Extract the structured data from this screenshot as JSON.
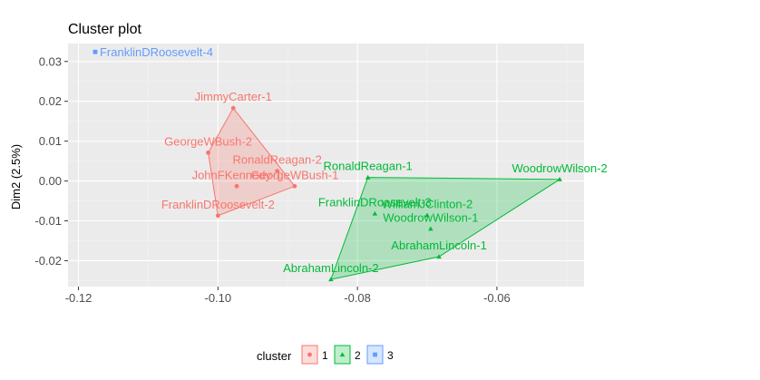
{
  "chart_data": {
    "type": "scatter",
    "title": "Cluster plot",
    "xlabel": "",
    "ylabel": "Dim2 (2.5%)",
    "xlim": [
      -0.1215,
      -0.0475
    ],
    "ylim": [
      -0.0265,
      0.0345
    ],
    "x_ticks": [
      -0.12,
      -0.1,
      -0.08,
      -0.06
    ],
    "x_tick_labels": [
      "-0.12",
      "-0.10",
      "-0.08",
      "-0.06"
    ],
    "y_ticks": [
      -0.02,
      -0.01,
      0.0,
      0.01,
      0.02,
      0.03
    ],
    "y_tick_labels": [
      "-0.02",
      "-0.01",
      "0.00",
      "0.01",
      "0.02",
      "0.03"
    ],
    "grid": true,
    "legend": {
      "title": "cluster",
      "placement": "bottom",
      "entries": [
        "1",
        "2",
        "3"
      ]
    },
    "series": [
      {
        "name": "1",
        "color": "#F8766D",
        "shape": "circle",
        "points": [
          {
            "label": "JimmyCarter-1",
            "x": -0.0978,
            "y": 0.0183
          },
          {
            "label": "GeorgeWBush-2",
            "x": -0.1014,
            "y": 0.0071
          },
          {
            "label": "RonaldReagan-2",
            "x": -0.0915,
            "y": 0.0025
          },
          {
            "label": "JohnFKennedy-1",
            "x": -0.0973,
            "y": -0.0013
          },
          {
            "label": "GeorgeWBush-1",
            "x": -0.089,
            "y": -0.0013
          },
          {
            "label": "FranklinDRoosevelt-2",
            "x": -0.1,
            "y": -0.0087
          }
        ],
        "hull": [
          [
            -0.0978,
            0.0183
          ],
          [
            -0.089,
            -0.0013
          ],
          [
            -0.1,
            -0.0087
          ],
          [
            -0.1014,
            0.0071
          ]
        ]
      },
      {
        "name": "2",
        "color": "#00BA38",
        "shape": "triangle",
        "points": [
          {
            "label": "RonaldReagan-1",
            "x": -0.0785,
            "y": 0.0009
          },
          {
            "label": "WoodrowWilson-2",
            "x": -0.051,
            "y": 0.0004
          },
          {
            "label": "FranklinDRoosevelt-3",
            "x": -0.0775,
            "y": -0.0082
          },
          {
            "label": "WilliamJClinton-2",
            "x": -0.07,
            "y": -0.0086
          },
          {
            "label": "WoodrowWilson-1",
            "x": -0.0695,
            "y": -0.012
          },
          {
            "label": "AbrahamLincoln-1",
            "x": -0.0683,
            "y": -0.019
          },
          {
            "label": "AbrahamLincoln-2",
            "x": -0.0838,
            "y": -0.0247
          }
        ],
        "hull": [
          [
            -0.0785,
            0.0009
          ],
          [
            -0.051,
            0.0004
          ],
          [
            -0.0683,
            -0.019
          ],
          [
            -0.0838,
            -0.0247
          ]
        ]
      },
      {
        "name": "3",
        "color": "#619CFF",
        "shape": "square",
        "points": [
          {
            "label": "FranklinDRoosevelt-4",
            "x": -0.1176,
            "y": 0.0324
          }
        ],
        "hull": []
      }
    ]
  }
}
